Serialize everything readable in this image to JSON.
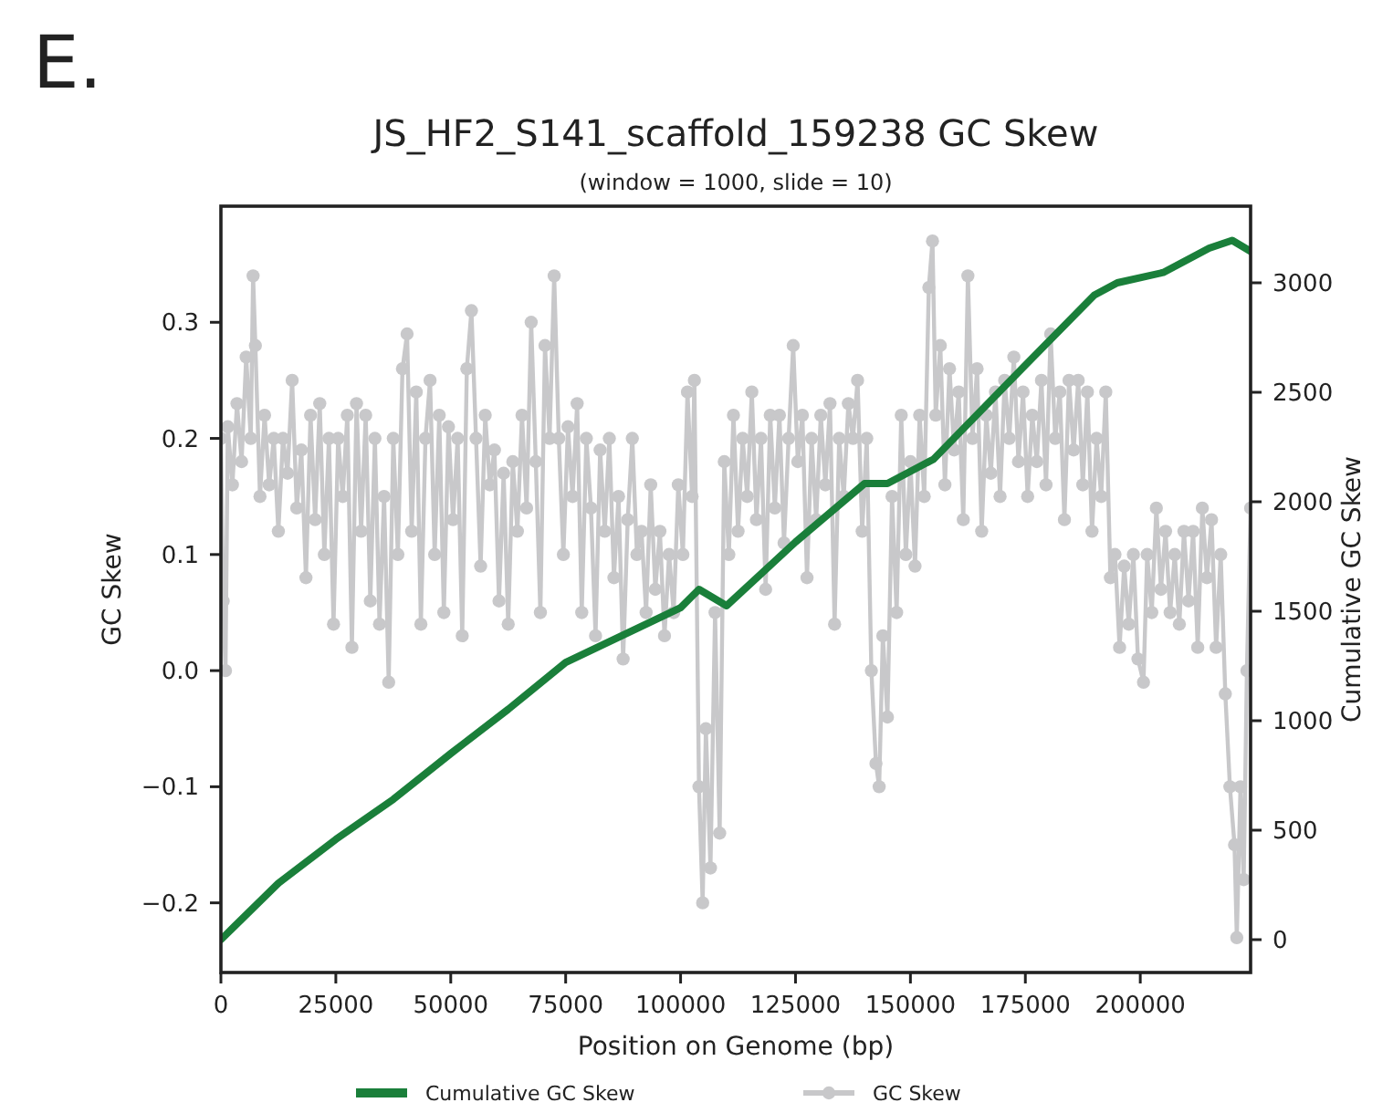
{
  "chart_data": {
    "type": "line",
    "title": "JS_HF2_S141_scaffold_159238 GC Skew",
    "subtitle": "(window = 1000, slide = 10)",
    "xlabel": "Position on Genome (bp)",
    "ylabel": "GC Skew",
    "y2label": "Cumulative GC Skew",
    "annotations": [
      "E."
    ],
    "xlim": [
      0,
      224000
    ],
    "xticks": [
      0,
      25000,
      50000,
      75000,
      100000,
      125000,
      150000,
      175000,
      200000
    ],
    "ylim": [
      -0.26,
      0.4
    ],
    "yticks": [
      {
        "value": -0.2,
        "label": "−0.2"
      },
      {
        "value": -0.1,
        "label": "−0.1"
      },
      {
        "value": 0,
        "label": "0.0"
      },
      0.1,
      0.2,
      0.3
    ],
    "y2lim": [
      -150,
      3350
    ],
    "y2ticks": [
      0,
      500,
      1000,
      1500,
      2000,
      2500,
      3000
    ],
    "grid": false,
    "legend": "bottom",
    "line_style": "solid",
    "series": [
      {
        "name": "Cumulative GC Skew",
        "color": "#1a7f3a",
        "axis": "y2",
        "marker": "none",
        "x": [
          0,
          12500,
          25000,
          37500,
          50000,
          62500,
          75000,
          87500,
          100000,
          104000,
          110000,
          125000,
          140000,
          145000,
          155000,
          175000,
          190000,
          195000,
          205000,
          215000,
          220000,
          224000
        ],
        "values": [
          0,
          258,
          458,
          641,
          850,
          1052,
          1266,
          1391,
          1516,
          1600,
          1525,
          1816,
          2083,
          2083,
          2194,
          2624,
          2944,
          3000,
          3047,
          3158,
          3194,
          3144
        ]
      },
      {
        "name": "GC Skew",
        "color": "#c8c8ca",
        "axis": "y",
        "marker": "circle",
        "x": [
          0,
          500,
          1000,
          1500,
          2500,
          3500,
          4500,
          5500,
          6500,
          7000,
          7500,
          8500,
          9500,
          10500,
          11500,
          12500,
          13500,
          14500,
          15500,
          16500,
          17500,
          18500,
          19500,
          20500,
          21500,
          22500,
          23500,
          24500,
          25500,
          26500,
          27500,
          28500,
          29500,
          30500,
          31500,
          32500,
          33500,
          34500,
          35500,
          36500,
          37500,
          38500,
          39500,
          40500,
          41500,
          42500,
          43500,
          44500,
          45500,
          46500,
          47500,
          48500,
          49500,
          50500,
          51500,
          52500,
          53500,
          54500,
          55500,
          56500,
          57500,
          58500,
          59500,
          60500,
          61500,
          62500,
          63500,
          64500,
          65500,
          66500,
          67500,
          68500,
          69500,
          70500,
          71500,
          72500,
          73500,
          74500,
          75500,
          76500,
          77500,
          78500,
          79500,
          80500,
          81500,
          82500,
          83500,
          84500,
          85500,
          86500,
          87500,
          88500,
          89500,
          90500,
          91500,
          92500,
          93500,
          94500,
          95500,
          96500,
          97500,
          98500,
          99500,
          100500,
          101500,
          102500,
          103000,
          104000,
          104800,
          105500,
          106500,
          107500,
          108500,
          109500,
          110500,
          111500,
          112500,
          113500,
          114500,
          115500,
          116500,
          117500,
          118500,
          119500,
          120500,
          121500,
          122500,
          123500,
          124500,
          125500,
          126500,
          127500,
          128500,
          129500,
          130500,
          131500,
          132500,
          133500,
          134500,
          135500,
          136500,
          137500,
          138500,
          139500,
          140500,
          141500,
          142500,
          143200,
          144000,
          145000,
          146000,
          147000,
          148000,
          149000,
          150000,
          151000,
          152000,
          153000,
          154000,
          154800,
          155500,
          156500,
          157500,
          158500,
          159500,
          160500,
          161500,
          162500,
          163500,
          164500,
          165500,
          166500,
          167500,
          168500,
          169500,
          170500,
          171500,
          172500,
          173500,
          174500,
          175500,
          176500,
          177500,
          178500,
          179500,
          180500,
          181500,
          182500,
          183500,
          184500,
          185500,
          186500,
          187500,
          188500,
          189500,
          190500,
          191500,
          192500,
          193500,
          194500,
          195500,
          196500,
          197500,
          198500,
          199500,
          200700,
          201500,
          202500,
          203500,
          204500,
          205500,
          206500,
          207500,
          208500,
          209500,
          210500,
          211500,
          212500,
          213500,
          214500,
          215500,
          216500,
          217500,
          218500,
          219500,
          220500,
          221000,
          221800,
          222500,
          223200,
          224000
        ],
        "values": [
          0.2,
          0.06,
          0.0,
          0.21,
          0.16,
          0.23,
          0.18,
          0.27,
          0.2,
          0.34,
          0.28,
          0.15,
          0.22,
          0.16,
          0.2,
          0.12,
          0.2,
          0.17,
          0.25,
          0.14,
          0.19,
          0.08,
          0.22,
          0.13,
          0.23,
          0.1,
          0.2,
          0.04,
          0.2,
          0.15,
          0.22,
          0.02,
          0.23,
          0.12,
          0.22,
          0.06,
          0.2,
          0.04,
          0.15,
          -0.01,
          0.2,
          0.1,
          0.26,
          0.29,
          0.12,
          0.24,
          0.04,
          0.2,
          0.25,
          0.1,
          0.22,
          0.05,
          0.21,
          0.13,
          0.2,
          0.03,
          0.26,
          0.31,
          0.2,
          0.09,
          0.22,
          0.16,
          0.19,
          0.06,
          0.17,
          0.04,
          0.18,
          0.12,
          0.22,
          0.14,
          0.3,
          0.18,
          0.05,
          0.28,
          0.2,
          0.34,
          0.2,
          0.1,
          0.21,
          0.15,
          0.23,
          0.05,
          0.2,
          0.14,
          0.03,
          0.19,
          0.12,
          0.2,
          0.08,
          0.15,
          0.01,
          0.13,
          0.2,
          0.1,
          0.12,
          0.05,
          0.16,
          0.07,
          0.12,
          0.03,
          0.1,
          0.05,
          0.16,
          0.1,
          0.24,
          0.15,
          0.25,
          -0.1,
          -0.2,
          -0.05,
          -0.17,
          0.05,
          -0.14,
          0.18,
          0.1,
          0.22,
          0.12,
          0.2,
          0.15,
          0.24,
          0.13,
          0.2,
          0.07,
          0.22,
          0.14,
          0.22,
          0.11,
          0.2,
          0.28,
          0.18,
          0.22,
          0.08,
          0.2,
          0.13,
          0.22,
          0.16,
          0.23,
          0.04,
          0.2,
          0.15,
          0.23,
          0.2,
          0.25,
          0.12,
          0.2,
          0.0,
          -0.08,
          -0.1,
          0.03,
          -0.04,
          0.15,
          0.05,
          0.22,
          0.1,
          0.18,
          0.09,
          0.22,
          0.15,
          0.33,
          0.37,
          0.22,
          0.28,
          0.16,
          0.26,
          0.19,
          0.24,
          0.13,
          0.34,
          0.2,
          0.26,
          0.12,
          0.22,
          0.17,
          0.24,
          0.15,
          0.25,
          0.2,
          0.27,
          0.18,
          0.24,
          0.15,
          0.22,
          0.18,
          0.25,
          0.16,
          0.29,
          0.2,
          0.24,
          0.13,
          0.25,
          0.19,
          0.25,
          0.16,
          0.24,
          0.12,
          0.2,
          0.15,
          0.24,
          0.08,
          0.1,
          0.02,
          0.09,
          0.04,
          0.1,
          0.01,
          -0.01,
          0.1,
          0.05,
          0.14,
          0.07,
          0.12,
          0.05,
          0.1,
          0.04,
          0.12,
          0.06,
          0.12,
          0.02,
          0.14,
          0.08,
          0.13,
          0.02,
          0.1,
          -0.02,
          -0.1,
          -0.15,
          -0.23,
          -0.1,
          -0.18,
          0.0,
          0.14
        ]
      }
    ]
  }
}
